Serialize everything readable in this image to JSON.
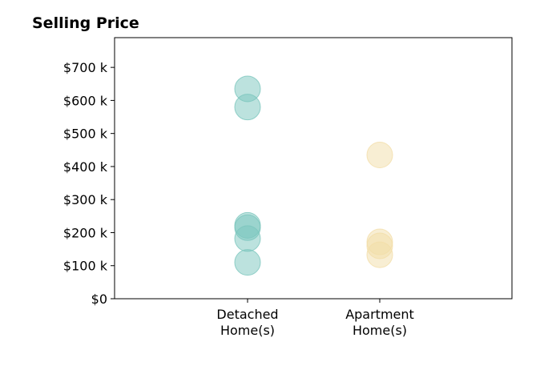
{
  "chart_data": {
    "type": "scatter",
    "title": "Selling Price",
    "xlabel": "",
    "ylabel": "",
    "categories": [
      {
        "line1": "Detached",
        "line2": "Home(s)"
      },
      {
        "line1": "Apartment",
        "line2": "Home(s)"
      }
    ],
    "ylim": [
      0,
      790000
    ],
    "y_ticks": [
      0,
      100000,
      200000,
      300000,
      400000,
      500000,
      600000,
      700000
    ],
    "y_tick_labels": [
      "$0",
      "$100 k",
      "$200 k",
      "$300 k",
      "$400 k",
      "$500 k",
      "$600 k",
      "$700 k"
    ],
    "grid": false,
    "series": [
      {
        "category": 0,
        "color": "#7ac5bd",
        "values": [
          635000,
          580000,
          222000,
          215000,
          182000,
          110000
        ]
      },
      {
        "category": 1,
        "color": "#f2dda8",
        "values": [
          435000,
          172000,
          160000,
          133000
        ]
      }
    ]
  }
}
